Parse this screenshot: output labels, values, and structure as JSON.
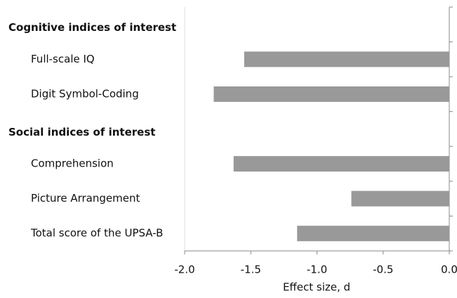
{
  "chart_data": {
    "type": "bar",
    "orientation": "horizontal",
    "groups": [
      {
        "name": "Cognitive indices of interest",
        "categories": [
          "Full-scale IQ",
          "Digit Symbol-Coding"
        ],
        "values": [
          -1.55,
          -1.78
        ]
      },
      {
        "name": "Social indices of interest",
        "categories": [
          "Comprehension",
          "Picture Arrangement",
          "Total score of the UPSA-B"
        ],
        "values": [
          -1.63,
          -0.74,
          -1.15
        ]
      }
    ],
    "color": "#999999",
    "x_label": "Effect size, d",
    "xlim": [
      -2,
      0
    ],
    "xticks": [
      {
        "value": -2,
        "label": "-2.0"
      },
      -1.5,
      {
        "value": -1,
        "label": "-1.0"
      },
      -0.5,
      {
        "value": 0,
        "label": "0.0"
      }
    ]
  }
}
